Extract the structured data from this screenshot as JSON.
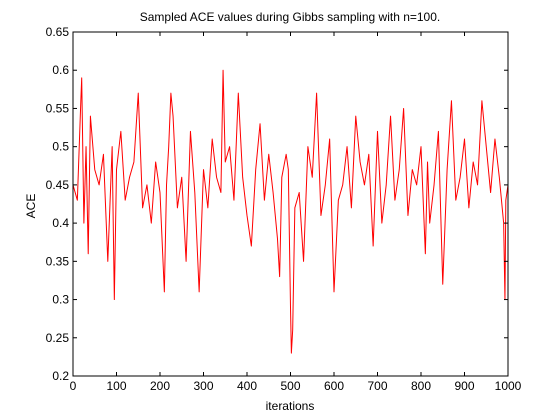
{
  "chart_data": {
    "type": "line",
    "title": "Sampled ACE values during Gibbs sampling with n=100.",
    "xlabel": "iterations",
    "ylabel": "ACE",
    "xlim": [
      0,
      1000
    ],
    "ylim": [
      0.2,
      0.65
    ],
    "xticks": [
      0,
      100,
      200,
      300,
      400,
      500,
      600,
      700,
      800,
      900,
      1000
    ],
    "yticks": [
      0.2,
      0.25,
      0.3,
      0.35,
      0.4,
      0.45,
      0.5,
      0.55,
      0.6,
      0.65
    ],
    "xtick_labels": [
      "0",
      "100",
      "200",
      "300",
      "400",
      "500",
      "600",
      "700",
      "800",
      "900",
      "1000"
    ],
    "ytick_labels": [
      "0.2",
      "0.25",
      "0.3",
      "0.35",
      "0.4",
      "0.45",
      "0.5",
      "0.55",
      "0.6",
      "0.65"
    ],
    "grid": false,
    "series": [
      {
        "color": "#ff0000",
        "x": [
          0,
          10,
          18,
          20,
          25,
          30,
          35,
          40,
          50,
          60,
          70,
          80,
          90,
          95,
          100,
          110,
          120,
          130,
          140,
          150,
          160,
          170,
          180,
          190,
          200,
          210,
          215,
          220,
          225,
          230,
          240,
          250,
          260,
          270,
          280,
          290,
          300,
          310,
          320,
          330,
          340,
          345,
          350,
          360,
          370,
          380,
          390,
          400,
          410,
          420,
          430,
          440,
          450,
          460,
          470,
          475,
          480,
          490,
          495,
          500,
          502,
          505,
          510,
          520,
          530,
          540,
          550,
          560,
          570,
          580,
          590,
          600,
          610,
          620,
          630,
          640,
          650,
          660,
          670,
          680,
          690,
          700,
          710,
          720,
          730,
          740,
          750,
          760,
          770,
          780,
          790,
          800,
          810,
          815,
          820,
          830,
          840,
          850,
          860,
          870,
          880,
          890,
          900,
          910,
          920,
          930,
          940,
          950,
          960,
          970,
          980,
          990,
          993,
          995,
          1000
        ],
        "y": [
          0.45,
          0.43,
          0.56,
          0.59,
          0.4,
          0.5,
          0.36,
          0.54,
          0.47,
          0.45,
          0.49,
          0.35,
          0.5,
          0.3,
          0.47,
          0.52,
          0.43,
          0.46,
          0.48,
          0.57,
          0.42,
          0.45,
          0.4,
          0.48,
          0.44,
          0.31,
          0.45,
          0.5,
          0.57,
          0.54,
          0.42,
          0.46,
          0.35,
          0.52,
          0.44,
          0.31,
          0.47,
          0.42,
          0.51,
          0.46,
          0.44,
          0.6,
          0.48,
          0.5,
          0.43,
          0.57,
          0.46,
          0.41,
          0.37,
          0.47,
          0.53,
          0.43,
          0.49,
          0.44,
          0.38,
          0.33,
          0.46,
          0.49,
          0.47,
          0.29,
          0.23,
          0.26,
          0.42,
          0.44,
          0.35,
          0.5,
          0.46,
          0.57,
          0.41,
          0.45,
          0.51,
          0.31,
          0.43,
          0.45,
          0.5,
          0.42,
          0.54,
          0.48,
          0.45,
          0.49,
          0.37,
          0.52,
          0.4,
          0.45,
          0.54,
          0.43,
          0.47,
          0.55,
          0.41,
          0.47,
          0.45,
          0.5,
          0.36,
          0.48,
          0.4,
          0.45,
          0.52,
          0.32,
          0.47,
          0.56,
          0.43,
          0.46,
          0.51,
          0.42,
          0.48,
          0.45,
          0.56,
          0.5,
          0.44,
          0.51,
          0.46,
          0.4,
          0.3,
          0.43,
          0.45
        ]
      }
    ]
  }
}
